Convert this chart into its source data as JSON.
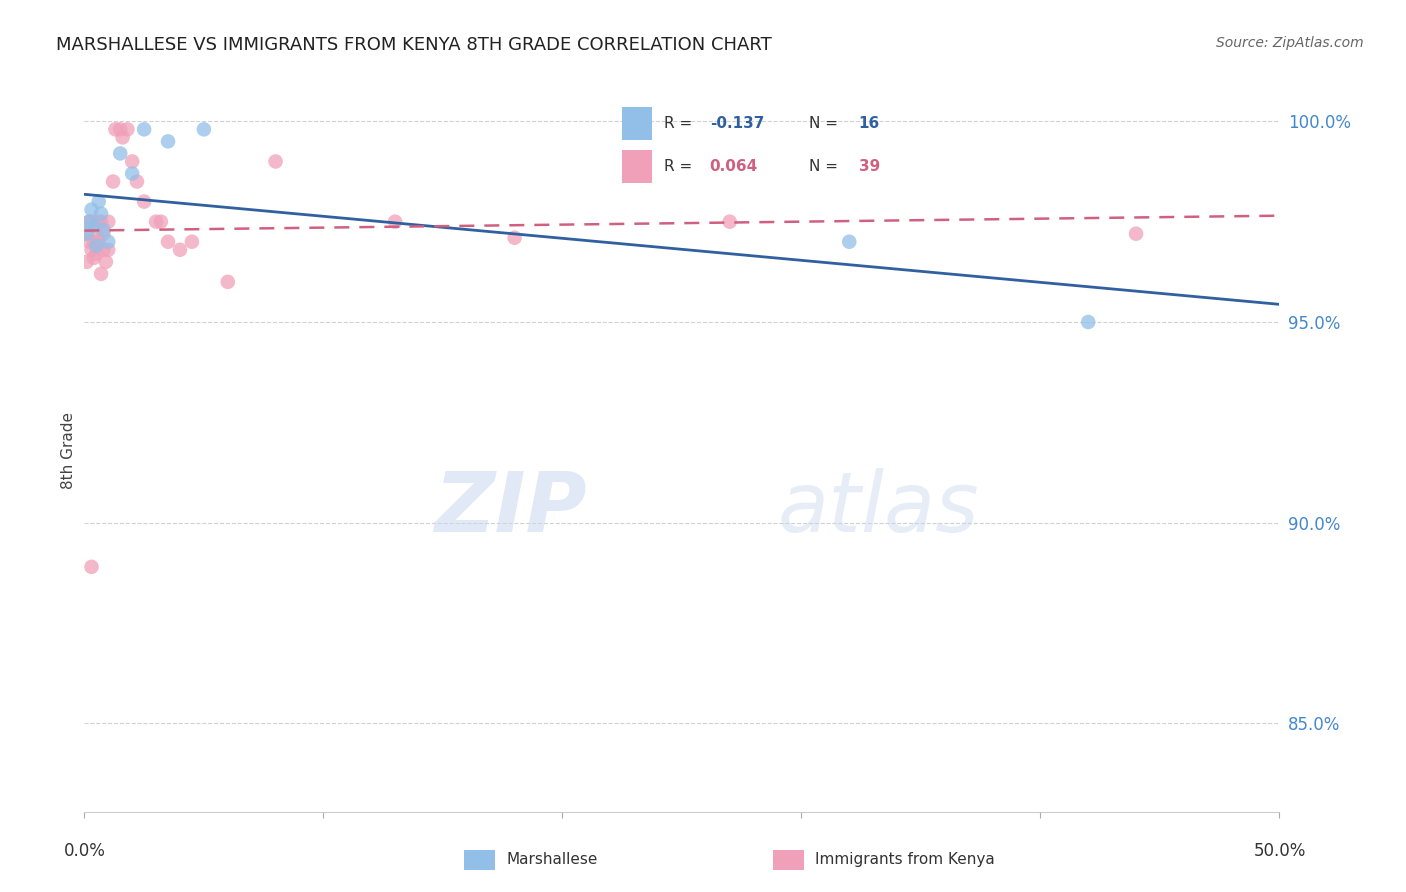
{
  "title": "MARSHALLESE VS IMMIGRANTS FROM KENYA 8TH GRADE CORRELATION CHART",
  "source": "Source: ZipAtlas.com",
  "ylabel": "8th Grade",
  "yticks": [
    0.85,
    0.9,
    0.95,
    1.0
  ],
  "ytick_labels": [
    "85.0%",
    "90.0%",
    "95.0%",
    "100.0%"
  ],
  "ylim": [
    0.828,
    1.008
  ],
  "xlim": [
    0.0,
    0.5
  ],
  "xtick_labels_show": [
    "0.0%",
    "50.0%"
  ],
  "blue_scatter": {
    "label": "Marshallese",
    "R": -0.137,
    "N": 16,
    "color": "#92bfe8",
    "line_color": "#3060a0",
    "x": [
      0.001,
      0.002,
      0.003,
      0.004,
      0.005,
      0.006,
      0.007,
      0.008,
      0.01,
      0.015,
      0.02,
      0.025,
      0.035,
      0.05,
      0.32,
      0.42
    ],
    "y": [
      0.972,
      0.975,
      0.978,
      0.974,
      0.969,
      0.98,
      0.977,
      0.973,
      0.97,
      0.992,
      0.987,
      0.998,
      0.995,
      0.998,
      0.97,
      0.95
    ]
  },
  "pink_scatter": {
    "label": "Immigrants from Kenya",
    "R": 0.064,
    "N": 39,
    "color": "#f0a0b8",
    "line_color": "#d06080",
    "x": [
      0.001,
      0.001,
      0.002,
      0.002,
      0.003,
      0.003,
      0.004,
      0.004,
      0.005,
      0.005,
      0.006,
      0.006,
      0.007,
      0.008,
      0.008,
      0.009,
      0.01,
      0.012,
      0.013,
      0.015,
      0.016,
      0.018,
      0.02,
      0.022,
      0.025,
      0.03,
      0.032,
      0.035,
      0.04,
      0.045,
      0.06,
      0.08,
      0.13,
      0.18,
      0.27,
      0.44,
      0.003,
      0.007,
      0.01
    ],
    "y": [
      0.965,
      0.972,
      0.97,
      0.975,
      0.968,
      0.975,
      0.966,
      0.97,
      0.967,
      0.972,
      0.975,
      0.97,
      0.975,
      0.968,
      0.972,
      0.965,
      0.975,
      0.985,
      0.998,
      0.998,
      0.996,
      0.998,
      0.99,
      0.985,
      0.98,
      0.975,
      0.975,
      0.97,
      0.968,
      0.97,
      0.96,
      0.99,
      0.975,
      0.971,
      0.975,
      0.972,
      0.889,
      0.962,
      0.968
    ]
  },
  "watermark_zip": "ZIP",
  "watermark_atlas": "atlas",
  "background_color": "#ffffff",
  "grid_color": "#cccccc",
  "legend_box_color": "#ffffff",
  "legend_border_color": "#cccccc"
}
